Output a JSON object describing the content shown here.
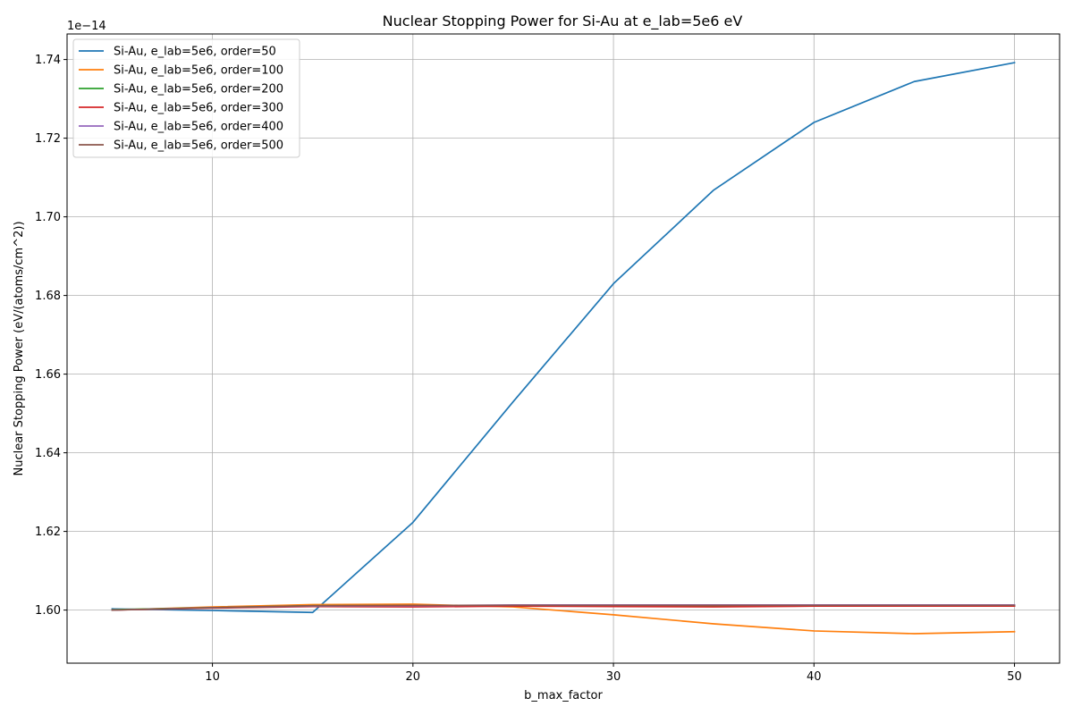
{
  "chart_data": {
    "type": "line",
    "title": "Nuclear Stopping Power for Si-Au at e_lab=5e6 eV",
    "xlabel": "b_max_factor",
    "ylabel": "Nuclear Stopping Power (eV/(atoms/cm^2))",
    "y_offset_label": "1e−14",
    "xlim": [
      2.75,
      52.25
    ],
    "ylim": [
      1.5865,
      1.7465
    ],
    "x_ticks": [
      10,
      20,
      30,
      40,
      50
    ],
    "x_tick_labels": [
      "10",
      "20",
      "30",
      "40",
      "50"
    ],
    "y_ticks": [
      1.6,
      1.62,
      1.64,
      1.66,
      1.68,
      1.7,
      1.72,
      1.74
    ],
    "y_tick_labels": [
      "1.60",
      "1.62",
      "1.64",
      "1.66",
      "1.68",
      "1.70",
      "1.72",
      "1.74"
    ],
    "grid": true,
    "legend_position": "top-left",
    "x": [
      5,
      10,
      15,
      20,
      25,
      30,
      35,
      40,
      45,
      50
    ],
    "series": [
      {
        "name": "Si-Au, e_lab=5e6, order=50",
        "color": "#1f77b4",
        "values": [
          1.6003,
          1.5999,
          1.5994,
          1.6223,
          1.653,
          1.683,
          1.7068,
          1.724,
          1.7344,
          1.7392
        ]
      },
      {
        "name": "Si-Au, e_lab=5e6, order=100",
        "color": "#ff7f0e",
        "values": [
          1.6,
          1.6008,
          1.6014,
          1.6015,
          1.6008,
          1.5988,
          1.5965,
          1.5947,
          1.594,
          1.5945
        ]
      },
      {
        "name": "Si-Au, e_lab=5e6, order=200",
        "color": "#2ca02c",
        "values": [
          1.6001,
          1.6006,
          1.6011,
          1.6011,
          1.6011,
          1.601,
          1.601,
          1.6011,
          1.601,
          1.601
        ]
      },
      {
        "name": "Si-Au, e_lab=5e6, order=300",
        "color": "#d62728",
        "values": [
          1.6,
          1.6005,
          1.6009,
          1.6008,
          1.601,
          1.6009,
          1.6008,
          1.601,
          1.601,
          1.601
        ]
      },
      {
        "name": "Si-Au, e_lab=5e6, order=400",
        "color": "#9467bd",
        "values": [
          1.6,
          1.6006,
          1.601,
          1.6011,
          1.6013,
          1.6013,
          1.6013,
          1.6013,
          1.6013,
          1.6013
        ]
      },
      {
        "name": "Si-Au, e_lab=5e6, order=500",
        "color": "#8c564b",
        "values": [
          1.6,
          1.6006,
          1.6011,
          1.6012,
          1.6012,
          1.6012,
          1.6012,
          1.6012,
          1.6012,
          1.6012
        ]
      }
    ]
  }
}
